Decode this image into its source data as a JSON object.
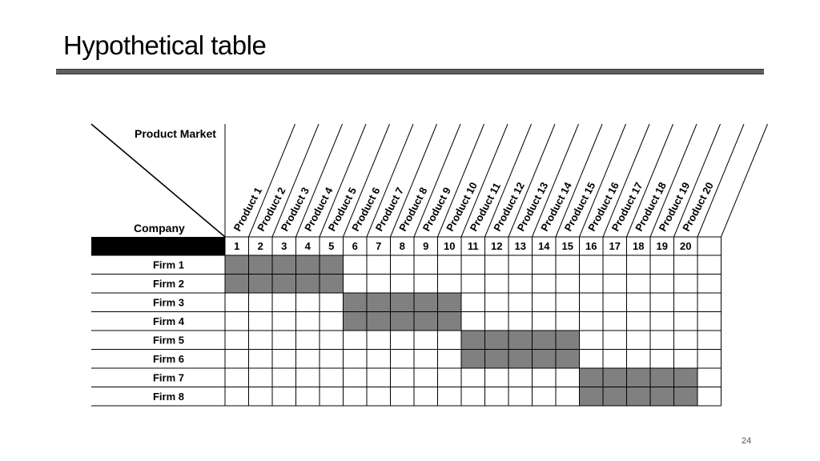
{
  "slide": {
    "title": "Hypothetical table",
    "page_number": "24"
  },
  "table": {
    "corner_top_label": "Product Market",
    "corner_bottom_label": "Company",
    "products": [
      "Product 1",
      "Product 2",
      "Product 3",
      "Product 4",
      "Product 5",
      "Product 6",
      "Product 7",
      "Product 8",
      "Product 9",
      "Product 10",
      "Product 11",
      "Product 12",
      "Product 13",
      "Product 14",
      "Product 15",
      "Product 16",
      "Product 17",
      "Product 18",
      "Product 19",
      "Product 20"
    ],
    "product_numbers": [
      "1",
      "2",
      "3",
      "4",
      "5",
      "6",
      "7",
      "8",
      "9",
      "10",
      "11",
      "12",
      "13",
      "14",
      "15",
      "16",
      "17",
      "18",
      "19",
      "20"
    ],
    "firms": [
      {
        "name": "Firm 1",
        "shaded_products": [
          1,
          2,
          3,
          4,
          5
        ]
      },
      {
        "name": "Firm 2",
        "shaded_products": [
          1,
          2,
          3,
          4,
          5
        ]
      },
      {
        "name": "Firm 3",
        "shaded_products": [
          6,
          7,
          8,
          9,
          10
        ]
      },
      {
        "name": "Firm 4",
        "shaded_products": [
          6,
          7,
          8,
          9,
          10
        ]
      },
      {
        "name": "Firm 5",
        "shaded_products": [
          11,
          12,
          13,
          14,
          15
        ]
      },
      {
        "name": "Firm 6",
        "shaded_products": [
          11,
          12,
          13,
          14,
          15
        ]
      },
      {
        "name": "Firm 7",
        "shaded_products": [
          16,
          17,
          18,
          19,
          20
        ]
      },
      {
        "name": "Firm 8",
        "shaded_products": [
          16,
          17,
          18,
          19,
          20
        ]
      }
    ],
    "colors": {
      "shaded_cell": "#808080",
      "header_bar": "#000000",
      "grid_line": "#000000"
    }
  }
}
